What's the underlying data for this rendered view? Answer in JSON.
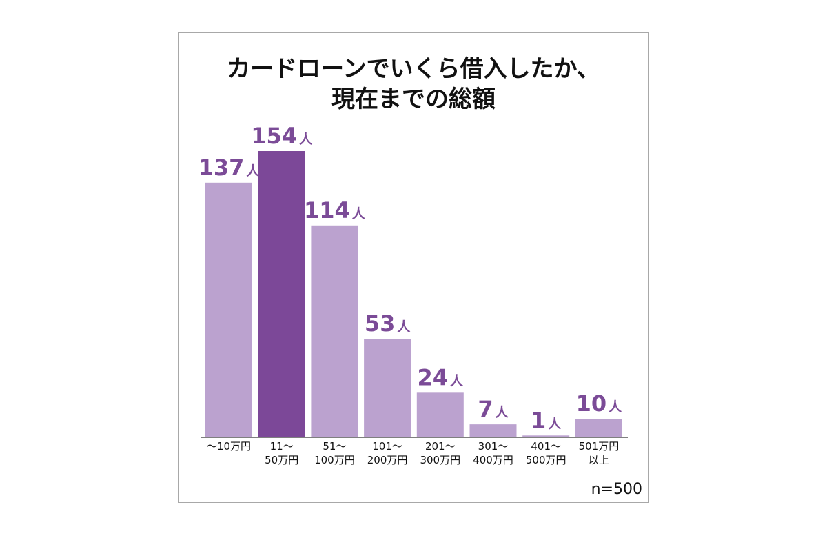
{
  "chart_data": {
    "type": "bar",
    "title_lines": [
      "カードローンでいくら借入したか、",
      "現在までの総額"
    ],
    "categories": [
      [
        "〜10万円"
      ],
      [
        "11〜",
        "50万円"
      ],
      [
        "51〜",
        "100万円"
      ],
      [
        "101〜",
        "200万円"
      ],
      [
        "201〜",
        "300万円"
      ],
      [
        "301〜",
        "400万円"
      ],
      [
        "401〜",
        "500万円"
      ],
      [
        "501万円",
        "以上"
      ]
    ],
    "values": [
      137,
      154,
      114,
      53,
      24,
      7,
      1,
      10
    ],
    "value_unit": "人",
    "highlight_index": 1,
    "ylim": [
      0,
      154
    ],
    "grid": false,
    "note": "n=500"
  },
  "colors": {
    "bar": "#bba2cf",
    "bar_highlight": "#7c4898",
    "value_label": "#7b4b97",
    "axis": "#555555"
  }
}
